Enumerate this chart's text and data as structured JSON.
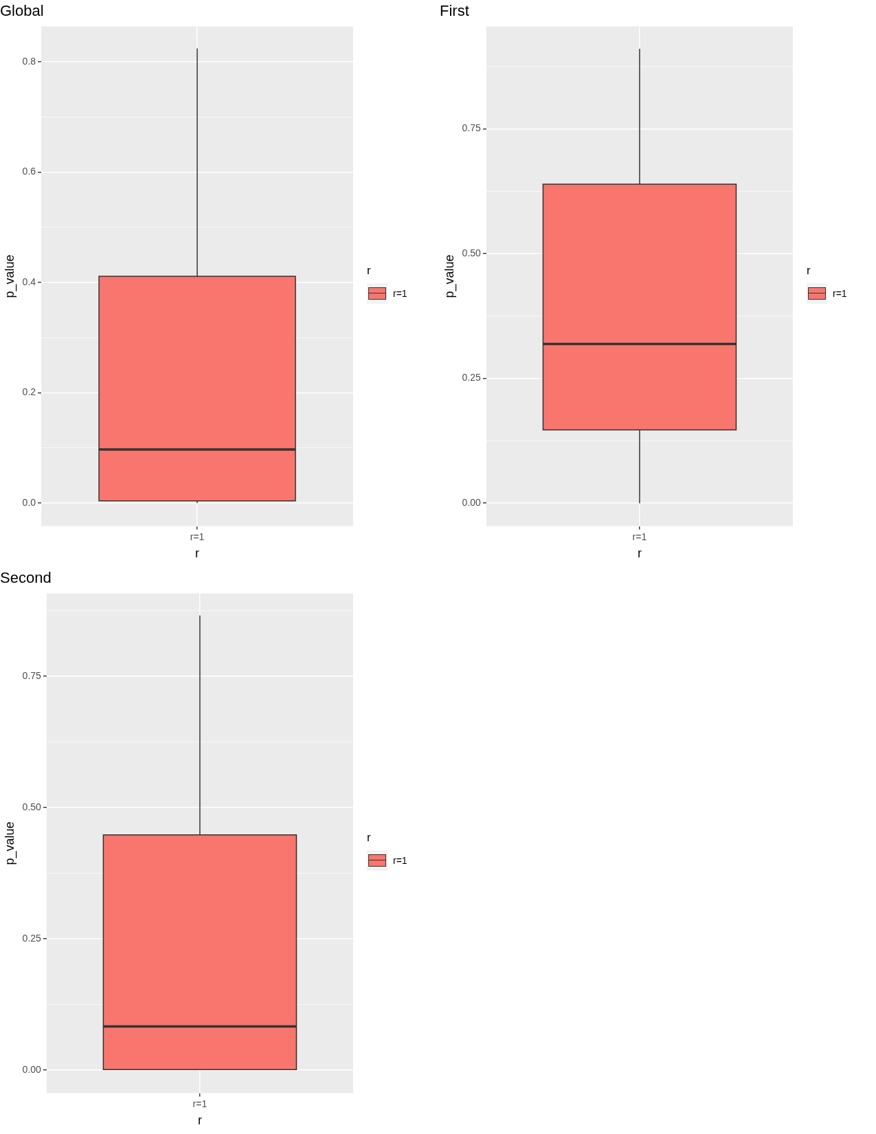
{
  "chart_data": [
    {
      "type": "box",
      "title": "Global",
      "xlabel": "r",
      "ylabel": "p_value",
      "legend_title": "r",
      "legend": "right",
      "grid": true,
      "categories": [
        "r=1"
      ],
      "series": [
        {
          "name": "r=1",
          "color": "#f8766d",
          "boxes": [
            {
              "low": 0.0,
              "q1": 0.004,
              "median": 0.097,
              "q3": 0.411,
              "high": 0.824
            }
          ]
        }
      ],
      "ylim": [
        -0.042,
        0.864
      ],
      "yticks": [
        {
          "value": 0,
          "label": "0.0"
        },
        {
          "value": 0.1,
          "label": null
        },
        {
          "value": 0.2,
          "label": "0.2"
        },
        {
          "value": 0.3,
          "label": null
        },
        {
          "value": 0.4,
          "label": "0.4"
        },
        {
          "value": 0.5,
          "label": null
        },
        {
          "value": 0.6,
          "label": "0.6"
        },
        {
          "value": 0.7,
          "label": null
        },
        {
          "value": 0.8,
          "label": "0.8"
        }
      ]
    },
    {
      "type": "box",
      "title": "First",
      "xlabel": "r",
      "ylabel": "p_value",
      "legend_title": "r",
      "legend": "right",
      "grid": true,
      "categories": [
        "r=1"
      ],
      "series": [
        {
          "name": "r=1",
          "color": "#f8766d",
          "boxes": [
            {
              "low": 0.0,
              "q1": 0.147,
              "median": 0.319,
              "q3": 0.639,
              "high": 0.91
            }
          ]
        }
      ],
      "ylim": [
        -0.046,
        0.955
      ],
      "yticks": [
        {
          "value": 0,
          "label": "0.00"
        },
        {
          "value": 0.125,
          "label": null
        },
        {
          "value": 0.25,
          "label": "0.25"
        },
        {
          "value": 0.375,
          "label": null
        },
        {
          "value": 0.5,
          "label": "0.50"
        },
        {
          "value": 0.625,
          "label": null
        },
        {
          "value": 0.75,
          "label": "0.75"
        },
        {
          "value": 0.875,
          "label": null
        }
      ]
    },
    {
      "type": "box",
      "title": "Second",
      "xlabel": "r",
      "ylabel": "p_value",
      "legend_title": "r",
      "legend": "right",
      "grid": true,
      "categories": [
        "r=1"
      ],
      "series": [
        {
          "name": "r=1",
          "color": "#f8766d",
          "boxes": [
            {
              "low": 0.0,
              "q1": 0.001,
              "median": 0.083,
              "q3": 0.448,
              "high": 0.866
            }
          ]
        }
      ],
      "ylim": [
        -0.044,
        0.908
      ],
      "yticks": [
        {
          "value": 0,
          "label": "0.00"
        },
        {
          "value": 0.125,
          "label": null
        },
        {
          "value": 0.25,
          "label": "0.25"
        },
        {
          "value": 0.375,
          "label": null
        },
        {
          "value": 0.5,
          "label": "0.50"
        },
        {
          "value": 0.625,
          "label": null
        },
        {
          "value": 0.75,
          "label": "0.75"
        },
        {
          "value": 0.875,
          "label": null
        }
      ]
    }
  ]
}
